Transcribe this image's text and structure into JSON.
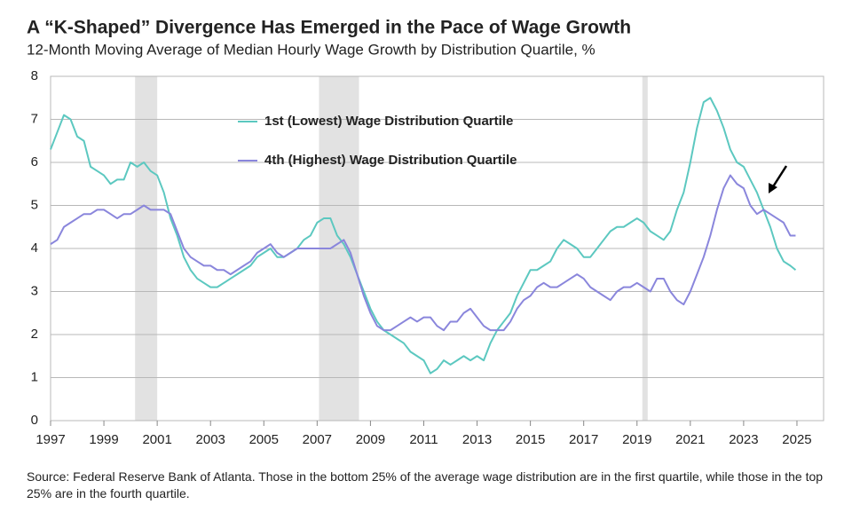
{
  "chart_data": {
    "type": "line",
    "title": "A “K-Shaped” Divergence Has Emerged in the Pace of Wage Growth",
    "subtitle": "12-Month Moving Average of Median Hourly Wage Growth by Distribution Quartile, %",
    "source": "Source: Federal Reserve Bank of Atlanta. Those in the bottom 25% of the average wage distribution are in the first quartile, while those in the top 25% are in the fourth quartile.",
    "xlim": [
      1997,
      2026
    ],
    "xticks": [
      1997,
      1999,
      2001,
      2003,
      2005,
      2007,
      2009,
      2011,
      2013,
      2015,
      2017,
      2019,
      2021,
      2023,
      2025
    ],
    "ylim": [
      0,
      8
    ],
    "yticks": [
      0,
      1,
      2,
      3,
      4,
      5,
      6,
      7,
      8
    ],
    "grid": true,
    "recessions": [
      [
        2000.17,
        2001.0
      ],
      [
        2007.07,
        2008.57
      ],
      [
        2019.2,
        2019.4
      ]
    ],
    "x": [
      1997.0,
      1997.25,
      1997.5,
      1997.75,
      1998.0,
      1998.25,
      1998.5,
      1998.75,
      1999.0,
      1999.25,
      1999.5,
      1999.75,
      2000.0,
      2000.25,
      2000.5,
      2000.75,
      2001.0,
      2001.25,
      2001.5,
      2001.75,
      2002.0,
      2002.25,
      2002.5,
      2002.75,
      2003.0,
      2003.25,
      2003.5,
      2003.75,
      2004.0,
      2004.25,
      2004.5,
      2004.75,
      2005.0,
      2005.25,
      2005.5,
      2005.75,
      2006.0,
      2006.25,
      2006.5,
      2006.75,
      2007.0,
      2007.25,
      2007.5,
      2007.75,
      2008.0,
      2008.25,
      2008.5,
      2008.75,
      2009.0,
      2009.25,
      2009.5,
      2009.75,
      2010.0,
      2010.25,
      2010.5,
      2010.75,
      2011.0,
      2011.25,
      2011.5,
      2011.75,
      2012.0,
      2012.25,
      2012.5,
      2012.75,
      2013.0,
      2013.25,
      2013.5,
      2013.75,
      2014.0,
      2014.25,
      2014.5,
      2014.75,
      2015.0,
      2015.25,
      2015.5,
      2015.75,
      2016.0,
      2016.25,
      2016.5,
      2016.75,
      2017.0,
      2017.25,
      2017.5,
      2017.75,
      2018.0,
      2018.25,
      2018.5,
      2018.75,
      2019.0,
      2019.25,
      2019.5,
      2019.75,
      2020.0,
      2020.25,
      2020.5,
      2020.75,
      2021.0,
      2021.25,
      2021.5,
      2021.75,
      2022.0,
      2022.25,
      2022.5,
      2022.75,
      2023.0,
      2023.25,
      2023.5,
      2023.75,
      2024.0,
      2024.25,
      2024.5,
      2024.75,
      2024.95
    ],
    "series": [
      {
        "name": "1st (Lowest) Wage Distribution Quartile",
        "color": "#5cc8c0",
        "values": [
          6.3,
          6.7,
          7.1,
          7.0,
          6.6,
          6.5,
          5.9,
          5.8,
          5.7,
          5.5,
          5.6,
          5.6,
          6.0,
          5.9,
          6.0,
          5.8,
          5.7,
          5.3,
          4.7,
          4.3,
          3.8,
          3.5,
          3.3,
          3.2,
          3.1,
          3.1,
          3.2,
          3.3,
          3.4,
          3.5,
          3.6,
          3.8,
          3.9,
          4.0,
          3.8,
          3.8,
          3.9,
          4.0,
          4.2,
          4.3,
          4.6,
          4.7,
          4.7,
          4.3,
          4.1,
          3.8,
          3.4,
          3.0,
          2.6,
          2.3,
          2.1,
          2.0,
          1.9,
          1.8,
          1.6,
          1.5,
          1.4,
          1.1,
          1.2,
          1.4,
          1.3,
          1.4,
          1.5,
          1.4,
          1.5,
          1.4,
          1.8,
          2.1,
          2.3,
          2.5,
          2.9,
          3.2,
          3.5,
          3.5,
          3.6,
          3.7,
          4.0,
          4.2,
          4.1,
          4.0,
          3.8,
          3.8,
          4.0,
          4.2,
          4.4,
          4.5,
          4.5,
          4.6,
          4.7,
          4.6,
          4.4,
          4.3,
          4.2,
          4.4,
          4.9,
          5.3,
          6.0,
          6.8,
          7.4,
          7.5,
          7.2,
          6.8,
          6.3,
          6.0,
          5.9,
          5.6,
          5.3,
          4.9,
          4.5,
          4.0,
          3.7,
          3.6,
          3.5
        ]
      },
      {
        "name": "4th (Highest) Wage Distribution Quartile",
        "color": "#8a86dc",
        "values": [
          4.1,
          4.2,
          4.5,
          4.6,
          4.7,
          4.8,
          4.8,
          4.9,
          4.9,
          4.8,
          4.7,
          4.8,
          4.8,
          4.9,
          5.0,
          4.9,
          4.9,
          4.9,
          4.8,
          4.4,
          4.0,
          3.8,
          3.7,
          3.6,
          3.6,
          3.5,
          3.5,
          3.4,
          3.5,
          3.6,
          3.7,
          3.9,
          4.0,
          4.1,
          3.9,
          3.8,
          3.9,
          4.0,
          4.0,
          4.0,
          4.0,
          4.0,
          4.0,
          4.1,
          4.2,
          3.9,
          3.4,
          2.9,
          2.5,
          2.2,
          2.1,
          2.1,
          2.2,
          2.3,
          2.4,
          2.3,
          2.4,
          2.4,
          2.2,
          2.1,
          2.3,
          2.3,
          2.5,
          2.6,
          2.4,
          2.2,
          2.1,
          2.1,
          2.1,
          2.3,
          2.6,
          2.8,
          2.9,
          3.1,
          3.2,
          3.1,
          3.1,
          3.2,
          3.3,
          3.4,
          3.3,
          3.1,
          3.0,
          2.9,
          2.8,
          3.0,
          3.1,
          3.1,
          3.2,
          3.1,
          3.0,
          3.3,
          3.3,
          3.0,
          2.8,
          2.7,
          3.0,
          3.4,
          3.8,
          4.3,
          4.9,
          5.4,
          5.7,
          5.5,
          5.4,
          5.0,
          4.8,
          4.9,
          4.8,
          4.7,
          4.6,
          4.3,
          4.3
        ]
      }
    ]
  }
}
